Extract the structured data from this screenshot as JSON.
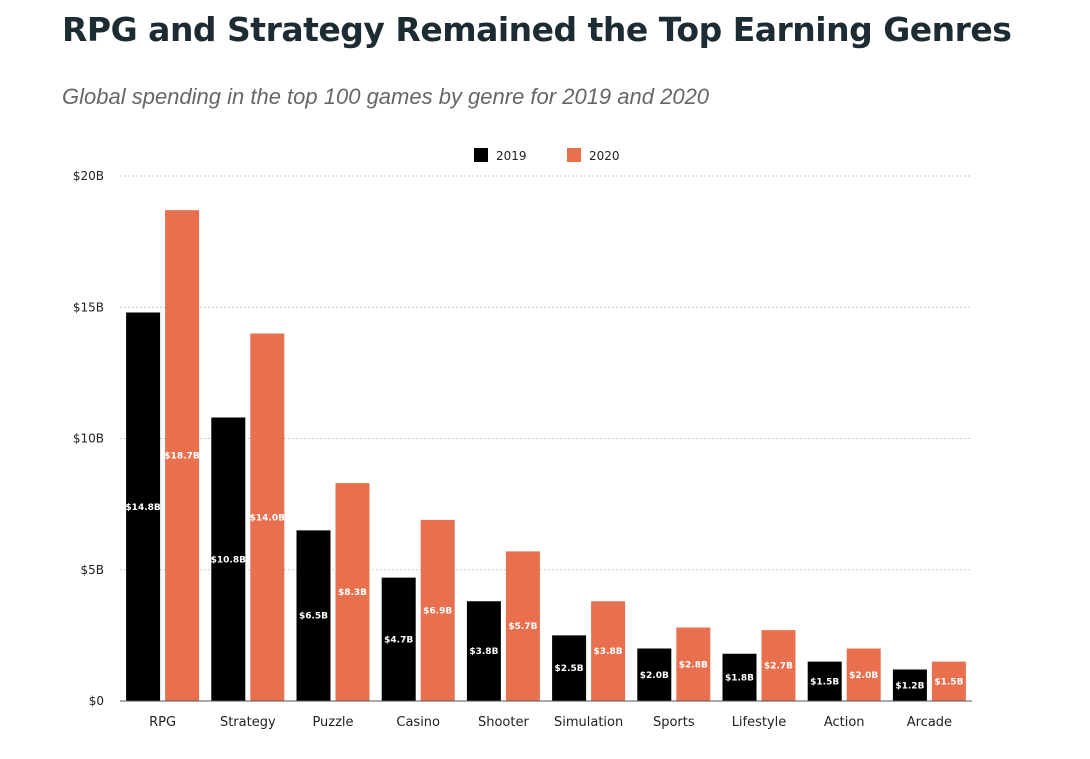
{
  "header": {
    "title": "RPG and Strategy Remained the Top Earning Genres",
    "subtitle": "Global spending in the top 100 games by genre for 2019 and 2020"
  },
  "chart_data": {
    "type": "bar",
    "title": "RPG and Strategy Remained the Top Earning Genres",
    "subtitle": "Global spending in the top 100 games by genre for 2019 and 2020",
    "xlabel": "",
    "ylabel": "",
    "categories": [
      "RPG",
      "Strategy",
      "Puzzle",
      "Casino",
      "Shooter",
      "Simulation",
      "Sports",
      "Lifestyle",
      "Action",
      "Arcade"
    ],
    "series": [
      {
        "name": "2019",
        "color": "#000000",
        "values": [
          14.8,
          10.8,
          6.5,
          4.7,
          3.8,
          2.5,
          2.0,
          1.8,
          1.5,
          1.2
        ],
        "labels": [
          "$14.8B",
          "$10.8B",
          "$6.5B",
          "$4.7B",
          "$3.8B",
          "$2.5B",
          "$2.0B",
          "$1.8B",
          "$1.5B",
          "$1.2B"
        ]
      },
      {
        "name": "2020",
        "color": "#e8704f",
        "values": [
          18.7,
          14.0,
          8.3,
          6.9,
          5.7,
          3.8,
          2.8,
          2.7,
          2.0,
          1.5
        ],
        "labels": [
          "$18.7B",
          "$14.0B",
          "$8.3B",
          "$6.9B",
          "$5.7B",
          "$3.8B",
          "$2.8B",
          "$2.7B",
          "$2.0B",
          "$1.5B"
        ]
      }
    ],
    "ylim": [
      0,
      20
    ],
    "yticks": [
      0,
      5,
      10,
      15,
      20
    ],
    "ytick_labels": [
      "$0",
      "$5B",
      "$10B",
      "$15B",
      "$20B"
    ],
    "grid": true,
    "legend_position": "top-center"
  }
}
